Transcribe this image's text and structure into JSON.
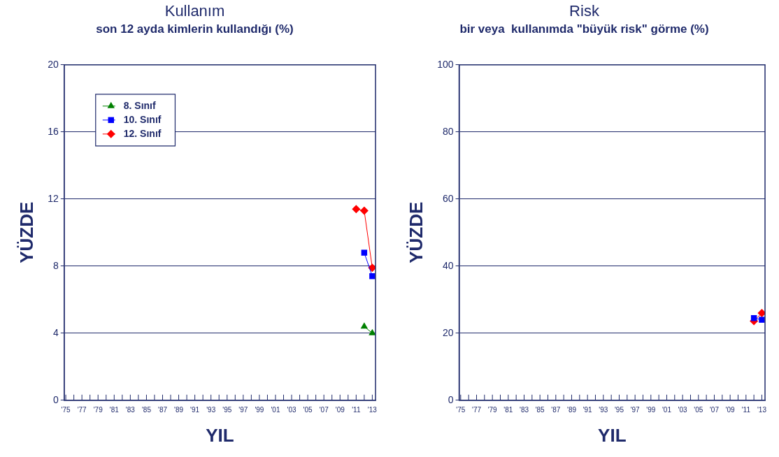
{
  "chart_data": [
    {
      "type": "line",
      "title": "Kullanım",
      "subtitle": "son 12 ayda kimlerin kullandığı (%)",
      "xlabel": "YIL",
      "ylabel": "YÜZDE",
      "xlim": [
        1974.8,
        2013.4
      ],
      "ylim": [
        0,
        20
      ],
      "yticks": [
        0,
        4,
        8,
        12,
        16,
        20
      ],
      "xticks": [
        {
          "value": 1975,
          "label": "'75"
        },
        {
          "value": 1976,
          "label": null
        },
        {
          "value": 1977,
          "label": "'77"
        },
        {
          "value": 1978,
          "label": null
        },
        {
          "value": 1979,
          "label": "'79"
        },
        {
          "value": 1980,
          "label": null
        },
        {
          "value": 1981,
          "label": "'81"
        },
        {
          "value": 1982,
          "label": null
        },
        {
          "value": 1983,
          "label": "'83"
        },
        {
          "value": 1984,
          "label": null
        },
        {
          "value": 1985,
          "label": "'85"
        },
        {
          "value": 1986,
          "label": null
        },
        {
          "value": 1987,
          "label": "'87"
        },
        {
          "value": 1988,
          "label": null
        },
        {
          "value": 1989,
          "label": "'89"
        },
        {
          "value": 1990,
          "label": null
        },
        {
          "value": 1991,
          "label": "'91"
        },
        {
          "value": 1992,
          "label": null
        },
        {
          "value": 1993,
          "label": "'93"
        },
        {
          "value": 1994,
          "label": null
        },
        {
          "value": 1995,
          "label": "'95"
        },
        {
          "value": 1996,
          "label": null
        },
        {
          "value": 1997,
          "label": "'97"
        },
        {
          "value": 1998,
          "label": null
        },
        {
          "value": 1999,
          "label": "'99"
        },
        {
          "value": 2000,
          "label": null
        },
        {
          "value": 2001,
          "label": "'01"
        },
        {
          "value": 2002,
          "label": null
        },
        {
          "value": 2003,
          "label": "'03"
        },
        {
          "value": 2004,
          "label": null
        },
        {
          "value": 2005,
          "label": "'05"
        },
        {
          "value": 2006,
          "label": null
        },
        {
          "value": 2007,
          "label": "'07"
        },
        {
          "value": 2008,
          "label": null
        },
        {
          "value": 2009,
          "label": "'09"
        },
        {
          "value": 2010,
          "label": null
        },
        {
          "value": 2011,
          "label": "'11"
        },
        {
          "value": 2012,
          "label": null
        },
        {
          "value": 2013,
          "label": "'13"
        }
      ],
      "grid": "y",
      "legend": "top left",
      "line_style": "solid",
      "series": [
        {
          "name": "8. Sınıf",
          "color": "#008000",
          "marker": "triangle",
          "x": [
            2012,
            2013
          ],
          "values": [
            4.4,
            4.0
          ]
        },
        {
          "name": "10. Sınıf",
          "color": "#0000ff",
          "marker": "square",
          "x": [
            2012,
            2013
          ],
          "values": [
            8.8,
            7.4
          ]
        },
        {
          "name": "12. Sınıf",
          "color": "#ff0000",
          "marker": "diamond",
          "x": [
            2011,
            2012,
            2013
          ],
          "values": [
            11.4,
            11.3,
            7.9
          ]
        }
      ]
    },
    {
      "type": "line",
      "title": "Risk",
      "subtitle": "bir veya  kullanımda \"büyük risk\" görme (%)",
      "xlabel": "YIL",
      "ylabel": "YÜZDE",
      "xlim": [
        1974.8,
        2013.4
      ],
      "ylim": [
        0,
        100
      ],
      "yticks": [
        0,
        20,
        40,
        60,
        80,
        100
      ],
      "xticks": [
        {
          "value": 1975,
          "label": "'75"
        },
        {
          "value": 1976,
          "label": null
        },
        {
          "value": 1977,
          "label": "'77"
        },
        {
          "value": 1978,
          "label": null
        },
        {
          "value": 1979,
          "label": "'79"
        },
        {
          "value": 1980,
          "label": null
        },
        {
          "value": 1981,
          "label": "'81"
        },
        {
          "value": 1982,
          "label": null
        },
        {
          "value": 1983,
          "label": "'83"
        },
        {
          "value": 1984,
          "label": null
        },
        {
          "value": 1985,
          "label": "'85"
        },
        {
          "value": 1986,
          "label": null
        },
        {
          "value": 1987,
          "label": "'87"
        },
        {
          "value": 1988,
          "label": null
        },
        {
          "value": 1989,
          "label": "'89"
        },
        {
          "value": 1990,
          "label": null
        },
        {
          "value": 1991,
          "label": "'91"
        },
        {
          "value": 1992,
          "label": null
        },
        {
          "value": 1993,
          "label": "'93"
        },
        {
          "value": 1994,
          "label": null
        },
        {
          "value": 1995,
          "label": "'95"
        },
        {
          "value": 1996,
          "label": null
        },
        {
          "value": 1997,
          "label": "'97"
        },
        {
          "value": 1998,
          "label": null
        },
        {
          "value": 1999,
          "label": "'99"
        },
        {
          "value": 2000,
          "label": null
        },
        {
          "value": 2001,
          "label": "'01"
        },
        {
          "value": 2002,
          "label": null
        },
        {
          "value": 2003,
          "label": "'03"
        },
        {
          "value": 2004,
          "label": null
        },
        {
          "value": 2005,
          "label": "'05"
        },
        {
          "value": 2006,
          "label": null
        },
        {
          "value": 2007,
          "label": "'07"
        },
        {
          "value": 2008,
          "label": null
        },
        {
          "value": 2009,
          "label": "'09"
        },
        {
          "value": 2010,
          "label": null
        },
        {
          "value": 2011,
          "label": "'11"
        },
        {
          "value": 2012,
          "label": null
        },
        {
          "value": 2013,
          "label": "'13"
        }
      ],
      "grid": "y",
      "line_style": "solid",
      "series": [
        {
          "color": "#0000ff",
          "marker": "square",
          "x": [
            2012,
            2013
          ],
          "values": [
            24.5,
            24.0
          ]
        },
        {
          "color": "#ff0000",
          "marker": "diamond",
          "x": [
            2012,
            2013
          ],
          "values": [
            23.6,
            26.0
          ]
        }
      ]
    }
  ]
}
